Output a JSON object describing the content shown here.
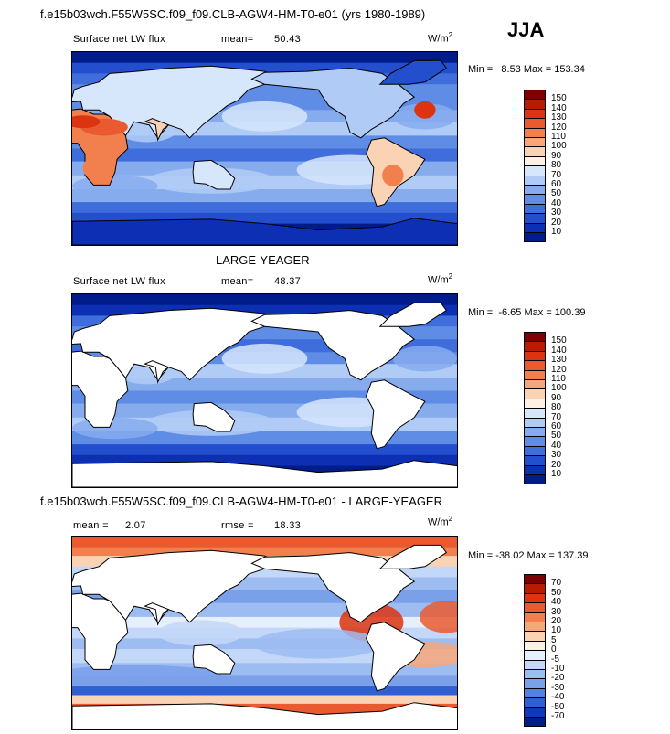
{
  "season": "JJA",
  "panels": [
    {
      "title": "f.e15b03wch.F55W5SC.f09_f09.CLB-AGW4-HM-T0-e01 (yrs 1980-1989)",
      "variable": "Surface net LW flux",
      "stat1_label": "mean=",
      "stat1_value": "50.43",
      "stat2_label": "",
      "stat2_value": "",
      "units": "W/m",
      "units_exp": "2",
      "min_label": "Min =",
      "min_value": "8.53",
      "max_label": "Max =",
      "max_value": "153.34",
      "levels": [
        "150",
        "140",
        "130",
        "120",
        "110",
        "100",
        "90",
        "80",
        "70",
        "60",
        "50",
        "40",
        "30",
        "20",
        "10"
      ],
      "colors": [
        "#7f0000",
        "#b71c00",
        "#dc3410",
        "#ea5a30",
        "#f2804f",
        "#f6a77a",
        "#fad2b4",
        "#fdf1e5",
        "#d6e6fb",
        "#b0cbf6",
        "#86acee",
        "#5f8de6",
        "#3f6edc",
        "#234ece",
        "#0d2fb4",
        "#001b8a"
      ],
      "land_masked": false
    },
    {
      "title": "LARGE-YEAGER",
      "variable": "Surface net LW flux",
      "stat1_label": "mean=",
      "stat1_value": "48.37",
      "stat2_label": "",
      "stat2_value": "",
      "units": "W/m",
      "units_exp": "2",
      "min_label": "Min =",
      "min_value": "-6.65",
      "max_label": "Max =",
      "max_value": "100.39",
      "levels": [
        "150",
        "140",
        "130",
        "120",
        "110",
        "100",
        "90",
        "80",
        "70",
        "60",
        "50",
        "40",
        "30",
        "20",
        "10"
      ],
      "colors": [
        "#7f0000",
        "#b71c00",
        "#dc3410",
        "#ea5a30",
        "#f2804f",
        "#f6a77a",
        "#fad2b4",
        "#fdf1e5",
        "#d6e6fb",
        "#b0cbf6",
        "#86acee",
        "#5f8de6",
        "#3f6edc",
        "#234ece",
        "#0d2fb4",
        "#001b8a"
      ],
      "land_masked": true
    },
    {
      "title": "f.e15b03wch.F55W5SC.f09_f09.CLB-AGW4-HM-T0-e01 - LARGE-YEAGER",
      "variable": "",
      "stat1_label": "mean =",
      "stat1_value": "2.07",
      "stat2_label": "rmse =",
      "stat2_value": "18.33",
      "units": "W/m",
      "units_exp": "2",
      "min_label": "Min =",
      "min_value": "-38.02",
      "max_label": "Max =",
      "max_value": "137.39",
      "levels": [
        "70",
        "50",
        "40",
        "30",
        "20",
        "10",
        "5",
        "0",
        "-5",
        "-10",
        "-20",
        "-30",
        "-40",
        "-50",
        "-70"
      ],
      "colors": [
        "#7f0000",
        "#b71c00",
        "#dc3410",
        "#ea5a30",
        "#f2804f",
        "#f6a77a",
        "#fad2b4",
        "#fdf1e5",
        "#e6effc",
        "#c3d7f8",
        "#9dbcf1",
        "#7aa0ea",
        "#5282e0",
        "#2f5fd2",
        "#1138b8",
        "#001b8a"
      ],
      "land_masked": true
    }
  ]
}
